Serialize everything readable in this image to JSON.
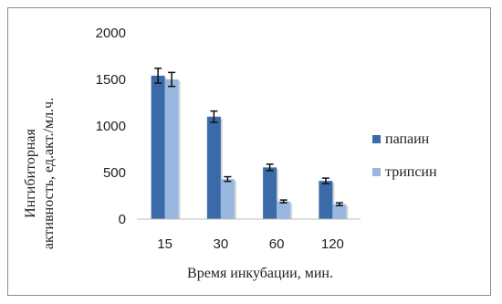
{
  "chart_data": {
    "type": "bar",
    "categories": [
      "15",
      "30",
      "60",
      "120"
    ],
    "series": [
      {
        "name": "папаин",
        "values": [
          1540,
          1100,
          555,
          410
        ],
        "errors": [
          80,
          60,
          35,
          30
        ],
        "color": "#3a6ba8"
      },
      {
        "name": "трипсин",
        "values": [
          1500,
          430,
          190,
          160
        ],
        "errors": [
          75,
          25,
          15,
          15
        ],
        "color": "#98b8e0"
      }
    ],
    "xlabel": "Время инкубации, мин.",
    "ylabel_line1": "Ингибиторная",
    "ylabel_line2": "активность, ед.акт./мл.ч.",
    "ylim": [
      0,
      2000
    ],
    "yticks": [
      0,
      500,
      1000,
      1500,
      2000
    ],
    "grid": false,
    "legend_position": "right"
  }
}
